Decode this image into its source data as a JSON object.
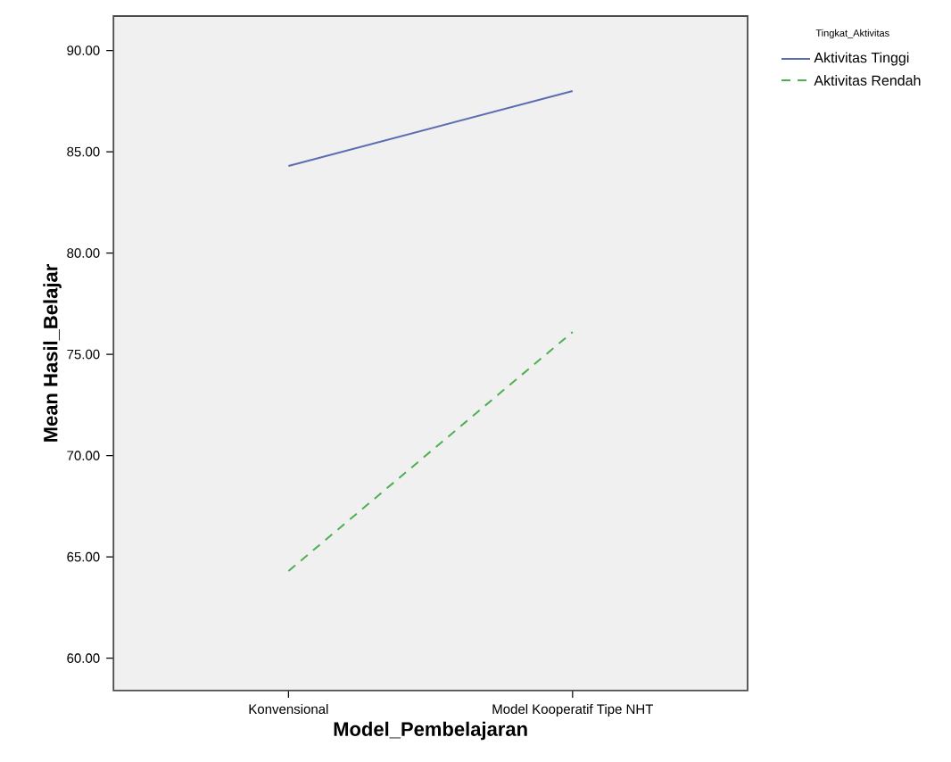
{
  "chart_data": {
    "type": "line",
    "xlabel": "Model_Pembelajaran",
    "ylabel": "Mean Hasil_Belajar",
    "legend_title": "Tingkat_Aktivitas",
    "categories": [
      "Konvensional",
      "Model Kooperatif Tipe NHT"
    ],
    "series": [
      {
        "name": "Aktivitas Tinggi",
        "color": "#5b6cb0",
        "values": [
          84.3,
          88.0
        ],
        "line_style": "solid"
      },
      {
        "name": "Aktivitas Rendah",
        "color": "#4caf50",
        "values": [
          64.3,
          76.1
        ],
        "line_style": "dashed"
      }
    ],
    "ylim": [
      58.4,
      91.7
    ],
    "yticks": [
      {
        "value": 60,
        "label": "60.00"
      },
      {
        "value": 65,
        "label": "65.00"
      },
      {
        "value": 70,
        "label": "70.00"
      },
      {
        "value": 75,
        "label": "75.00"
      },
      {
        "value": 80,
        "label": "80.00"
      },
      {
        "value": 85,
        "label": "85.00"
      },
      {
        "value": 90,
        "label": "90.00"
      }
    ],
    "legend": "top right",
    "grid": false,
    "marker": "none"
  }
}
